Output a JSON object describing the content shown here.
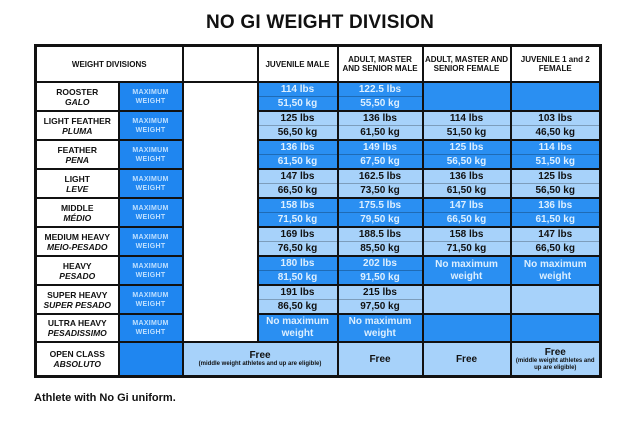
{
  "title": "NO GI WEIGHT DIVISION",
  "headers": {
    "divisions": "WEIGHT DIVISIONS",
    "juvenile_male": "JUVENILE MALE",
    "adult_male": "ADULT, MASTER AND SENIOR MALE",
    "adult_female": "ADULT, MASTER AND SENIOR FEMALE",
    "juvenile_female": "JUVENILE 1 and 2 FEMALE"
  },
  "max_weight_label": "MAXIMUM WEIGHT",
  "rows": [
    {
      "name": "ROOSTER",
      "sub": "GALO",
      "shade": "d",
      "jm": [
        "114 lbs",
        "51,50 kg"
      ],
      "am": [
        "122.5 lbs",
        "55,50 kg"
      ],
      "af": null,
      "jf": null
    },
    {
      "name": "LIGHT FEATHER",
      "sub": "PLUMA",
      "shade": "l",
      "jm": [
        "125 lbs",
        "56,50 kg"
      ],
      "am": [
        "136 lbs",
        "61,50 kg"
      ],
      "af": [
        "114 lbs",
        "51,50 kg"
      ],
      "jf": [
        "103 lbs",
        "46,50 kg"
      ]
    },
    {
      "name": "FEATHER",
      "sub": "PENA",
      "shade": "d",
      "jm": [
        "136 lbs",
        "61,50 kg"
      ],
      "am": [
        "149 lbs",
        "67,50 kg"
      ],
      "af": [
        "125 lbs",
        "56,50 kg"
      ],
      "jf": [
        "114 lbs",
        "51,50 kg"
      ]
    },
    {
      "name": "LIGHT",
      "sub": "LEVE",
      "shade": "l",
      "jm": [
        "147 lbs",
        "66,50 kg"
      ],
      "am": [
        "162.5 lbs",
        "73,50 kg"
      ],
      "af": [
        "136 lbs",
        "61,50 kg"
      ],
      "jf": [
        "125 lbs",
        "56,50 kg"
      ]
    },
    {
      "name": "MIDDLE",
      "sub": "MÉDIO",
      "shade": "d",
      "jm": [
        "158 lbs",
        "71,50 kg"
      ],
      "am": [
        "175.5 lbs",
        "79,50 kg"
      ],
      "af": [
        "147 lbs",
        "66,50 kg"
      ],
      "jf": [
        "136 lbs",
        "61,50 kg"
      ]
    },
    {
      "name": "MEDIUM HEAVY",
      "sub": "MEIO-PESADO",
      "shade": "l",
      "jm": [
        "169 lbs",
        "76,50 kg"
      ],
      "am": [
        "188.5 lbs",
        "85,50 kg"
      ],
      "af": [
        "158 lbs",
        "71,50 kg"
      ],
      "jf": [
        "147 lbs",
        "66,50 kg"
      ]
    },
    {
      "name": "HEAVY",
      "sub": "PESADO",
      "shade": "d",
      "jm": [
        "180 lbs",
        "81,50 kg"
      ],
      "am": [
        "202 lbs",
        "91,50 kg"
      ],
      "af": [
        "No maximum weight"
      ],
      "jf": [
        "No maximum weight"
      ]
    },
    {
      "name": "SUPER HEAVY",
      "sub": "SUPER PESADO",
      "shade": "l",
      "jm": [
        "191 lbs",
        "86,50 kg"
      ],
      "am": [
        "215 lbs",
        "97,50 kg"
      ],
      "af": null,
      "jf": null
    },
    {
      "name": "ULTRA HEAVY",
      "sub": "PESADISSIMO",
      "shade": "d",
      "jm": [
        "No maximum weight"
      ],
      "am": [
        "No maximum weight"
      ],
      "af": null,
      "jf": null
    }
  ],
  "open_class": {
    "name": "OPEN CLASS",
    "sub": "ABSOLUTO",
    "juvenile_male": "Free",
    "juvenile_male_note": "(middle weight athletes and up are eligible)",
    "adult_male": "Free",
    "adult_female": "Free",
    "juvenile_female": "Free",
    "juvenile_female_note": "(middle weight athletes and up are eligible)"
  },
  "footer": "Athlete with No Gi uniform.",
  "colors": {
    "dark_blue": "#2a8ff2",
    "light_blue": "#a7d2fa",
    "label_blue": "#1f86f0"
  }
}
